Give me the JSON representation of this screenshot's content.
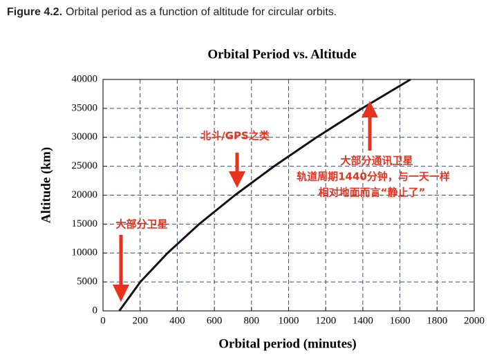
{
  "caption_label": "Figure 4.2.",
  "caption": "Orbital period as a function of altitude for circular orbits.",
  "chart_data": {
    "type": "line",
    "title": "Orbital Period vs. Altitude",
    "x_label": "Orbital period (minutes)",
    "y_label": "Altitude (km)",
    "x": [
      88,
      201,
      348,
      518,
      711,
      922,
      1151,
      1396,
      1657
    ],
    "values": [
      0,
      5000,
      10000,
      15000,
      20000,
      25000,
      30000,
      35000,
      40000
    ],
    "color": "#111111",
    "xlim": [
      0,
      2000
    ],
    "xticks": [
      0,
      200,
      400,
      600,
      800,
      1000,
      1200,
      1400,
      1600,
      1800,
      2000
    ],
    "ylim": [
      0,
      40000
    ],
    "yticks": [
      0,
      5000,
      10000,
      15000,
      20000,
      25000,
      30000,
      35000,
      40000
    ],
    "grid": true,
    "annotations": [
      "大部分卫星",
      "北斗/GPS之类",
      "大部分通讯卫星",
      "轨道周期1440分钟，与一天一样",
      "相对地面而言“静止了”"
    ]
  }
}
